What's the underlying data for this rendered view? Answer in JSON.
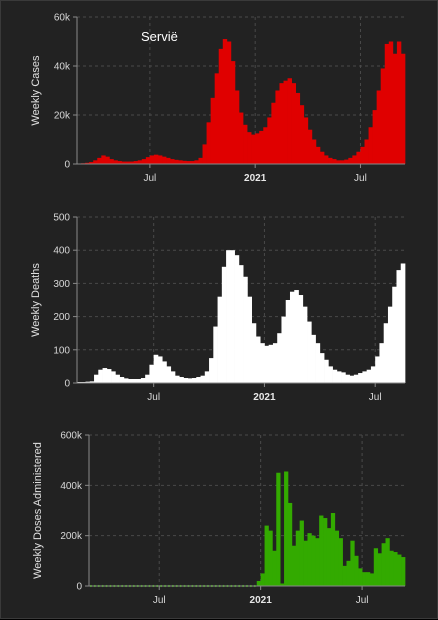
{
  "chart_data": [
    {
      "type": "bar",
      "title": "Servië",
      "ylabel": "Weekly Cases",
      "color": "#e00000",
      "ylim": [
        0,
        60000
      ],
      "yticks": [
        0,
        20000,
        40000,
        60000
      ],
      "ytick_labels": [
        "0",
        "20k",
        "40k",
        "60k"
      ],
      "xticks": [
        {
          "week": 18,
          "label": "Jul"
        },
        {
          "week": 44,
          "label": "2021"
        },
        {
          "week": 70,
          "label": "Jul"
        }
      ],
      "grid": true,
      "values": [
        200,
        300,
        500,
        800,
        1500,
        2500,
        3500,
        3000,
        2000,
        1500,
        1200,
        1000,
        1000,
        1000,
        1200,
        1500,
        2000,
        2800,
        3500,
        3800,
        3500,
        3000,
        2500,
        2000,
        1700,
        1500,
        1300,
        1200,
        1200,
        1500,
        2500,
        8000,
        17000,
        27000,
        37000,
        47000,
        51000,
        50000,
        42000,
        30000,
        21000,
        16000,
        13000,
        12000,
        12500,
        13500,
        15000,
        19000,
        25000,
        30000,
        33000,
        34000,
        35000,
        33000,
        29000,
        24000,
        19000,
        14000,
        10000,
        7000,
        5000,
        3500,
        2500,
        2000,
        1500,
        1500,
        1800,
        2500,
        3500,
        5000,
        7000,
        10000,
        15000,
        22000,
        30000,
        39000,
        49000,
        50000,
        45000,
        50000,
        45000
      ]
    },
    {
      "type": "bar",
      "title": "",
      "ylabel": "Weekly Deaths",
      "color": "#ffffff",
      "ylim": [
        0,
        500
      ],
      "yticks": [
        0,
        100,
        200,
        300,
        400,
        500
      ],
      "ytick_labels": [
        "0",
        "100",
        "200",
        "300",
        "400",
        "500"
      ],
      "xticks": [
        {
          "week": 18,
          "label": "Jul"
        },
        {
          "week": 44,
          "label": "2021"
        },
        {
          "week": 70,
          "label": "Jul"
        }
      ],
      "grid": true,
      "values": [
        3,
        3,
        4,
        5,
        25,
        40,
        45,
        42,
        35,
        25,
        18,
        14,
        12,
        12,
        12,
        15,
        25,
        55,
        85,
        80,
        65,
        50,
        35,
        22,
        18,
        15,
        14,
        15,
        18,
        22,
        35,
        75,
        170,
        260,
        350,
        400,
        400,
        385,
        355,
        320,
        260,
        180,
        140,
        120,
        112,
        115,
        120,
        150,
        200,
        250,
        275,
        280,
        265,
        230,
        185,
        145,
        120,
        90,
        70,
        50,
        40,
        35,
        32,
        25,
        22,
        25,
        30,
        35,
        40,
        50,
        80,
        120,
        180,
        230,
        290,
        340,
        360
      ]
    },
    {
      "type": "bar",
      "title": "",
      "ylabel": "Weekly Doses Administered",
      "color": "#33aa00",
      "ylim": [
        0,
        600000
      ],
      "yticks": [
        0,
        200000,
        400000,
        600000
      ],
      "ytick_labels": [
        "0",
        "200k",
        "400k",
        "600k"
      ],
      "xticks": [
        {
          "week": 18,
          "label": "Jul"
        },
        {
          "week": 44,
          "label": "2021"
        },
        {
          "week": 70,
          "label": "Jul"
        }
      ],
      "grid": true,
      "values": [
        0,
        0,
        0,
        0,
        0,
        0,
        0,
        0,
        0,
        0,
        0,
        0,
        0,
        0,
        0,
        0,
        0,
        0,
        0,
        0,
        0,
        0,
        0,
        0,
        0,
        0,
        0,
        0,
        0,
        0,
        0,
        0,
        0,
        0,
        0,
        0,
        0,
        0,
        0,
        0,
        0,
        0,
        0,
        20000,
        50000,
        240000,
        220000,
        140000,
        450000,
        10000,
        455000,
        330000,
        160000,
        220000,
        260000,
        180000,
        210000,
        200000,
        190000,
        280000,
        270000,
        230000,
        290000,
        220000,
        190000,
        80000,
        100000,
        180000,
        120000,
        70000,
        55000,
        55000,
        50000,
        150000,
        130000,
        170000,
        190000,
        140000,
        135000,
        125000,
        115000
      ]
    }
  ]
}
